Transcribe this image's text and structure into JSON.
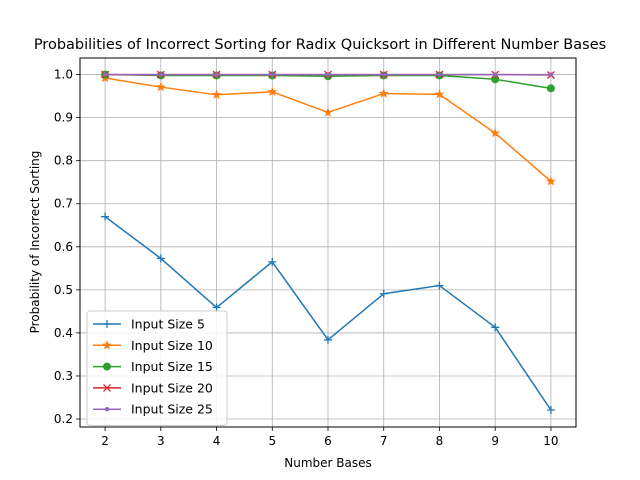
{
  "chart_data": {
    "type": "line",
    "title": "Probabilities of Incorrect Sorting for Radix Quicksort in Different Number Bases",
    "xlabel": "Number Bases",
    "ylabel": "Probability of Incorrect Sorting",
    "x": [
      2,
      3,
      4,
      5,
      6,
      7,
      8,
      9,
      10
    ],
    "xlim": [
      1.55,
      10.45
    ],
    "ylim": [
      0.1815,
      1.0385
    ],
    "xticks": [
      "2",
      "3",
      "4",
      "5",
      "6",
      "7",
      "8",
      "9",
      "10"
    ],
    "yticks": [
      "0.2",
      "0.3",
      "0.4",
      "0.5",
      "0.6",
      "0.7",
      "0.8",
      "0.9",
      "1.0"
    ],
    "grid": true,
    "legend_position": "lower-left",
    "series": [
      {
        "name": "Input Size 5",
        "color": "#1f77b4",
        "marker": "plus",
        "values": [
          0.67,
          0.573,
          0.459,
          0.565,
          0.384,
          0.491,
          0.51,
          0.413,
          0.221
        ]
      },
      {
        "name": "Input Size 10",
        "color": "#ff7f0e",
        "marker": "star",
        "values": [
          0.992,
          0.971,
          0.953,
          0.96,
          0.912,
          0.956,
          0.954,
          0.864,
          0.752
        ]
      },
      {
        "name": "Input Size 15",
        "color": "#2ca02c",
        "marker": "circle",
        "values": [
          1.0,
          0.998,
          0.998,
          0.998,
          0.996,
          0.998,
          0.998,
          0.989,
          0.968
        ]
      },
      {
        "name": "Input Size 20",
        "color": "#d62728",
        "marker": "x",
        "values": [
          1.0,
          1.0,
          1.0,
          1.0,
          1.0,
          1.0,
          1.0,
          1.0,
          0.999
        ]
      },
      {
        "name": "Input Size 25",
        "color": "#9467bd",
        "marker": "point",
        "values": [
          1.0,
          1.0,
          1.0,
          1.0,
          1.0,
          1.0,
          1.0,
          1.0,
          1.0
        ]
      }
    ]
  }
}
